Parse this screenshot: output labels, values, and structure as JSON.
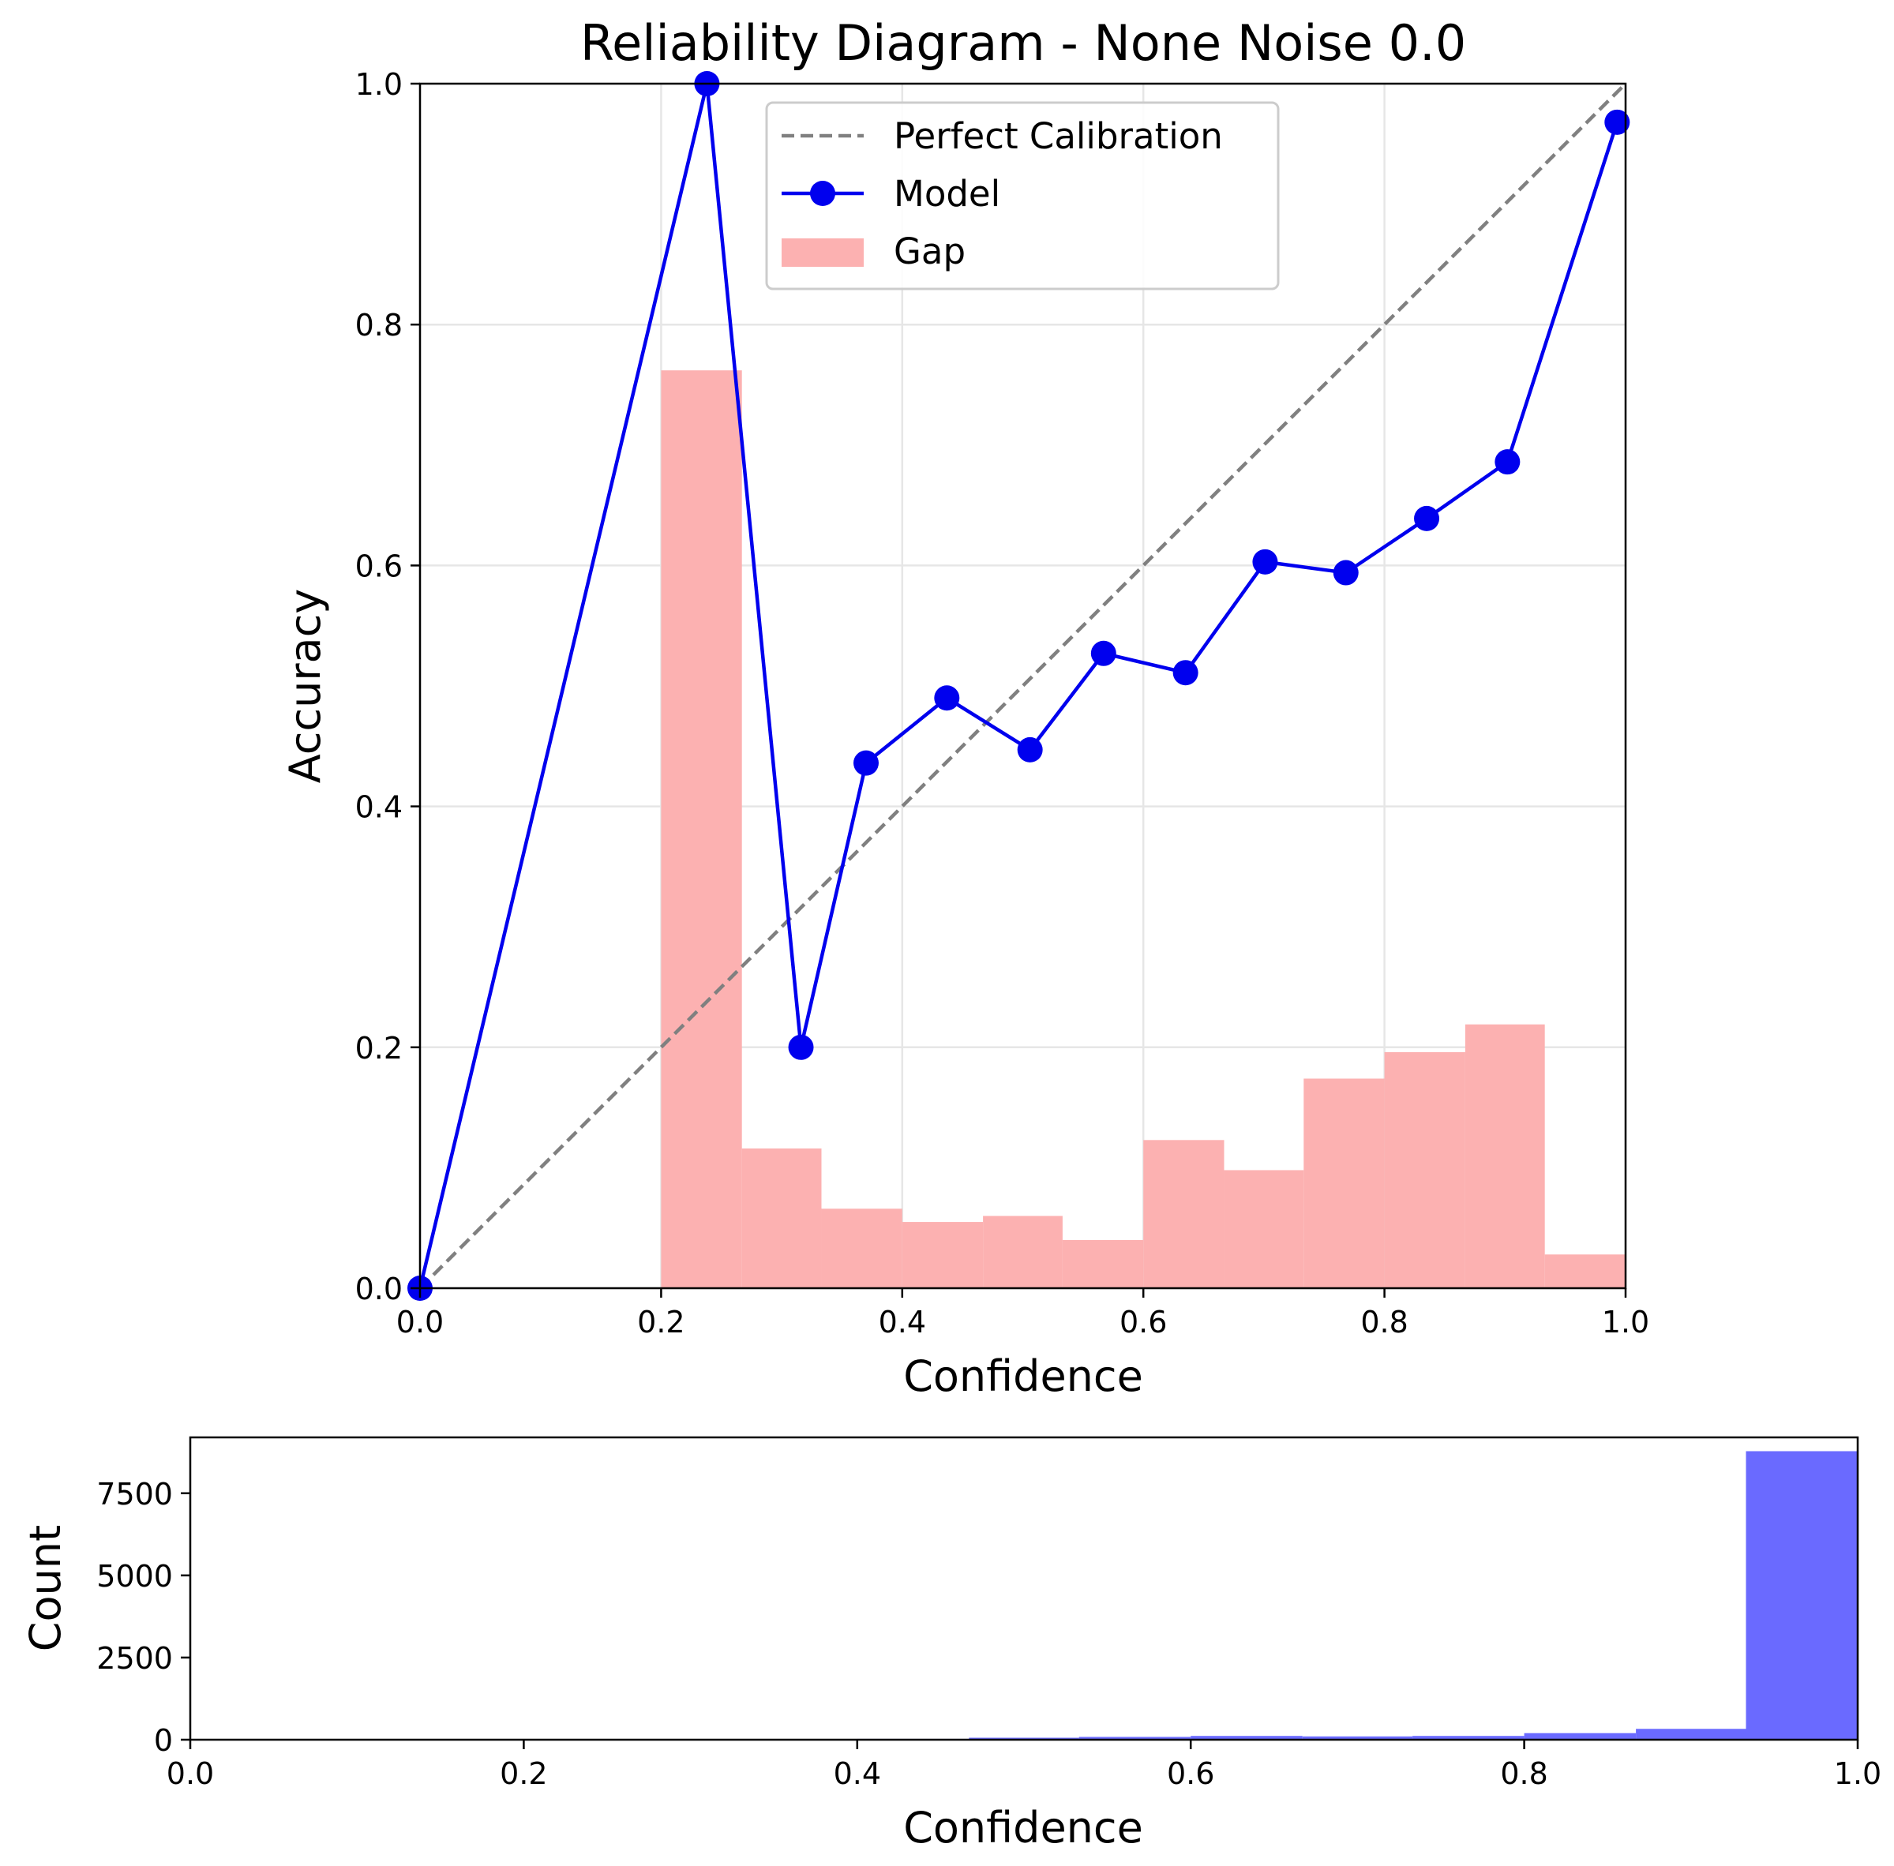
{
  "chart_data": [
    {
      "type": "line",
      "title": "Reliability Diagram - None Noise 0.0",
      "xlabel": "Confidence",
      "ylabel": "Accuracy",
      "xlim": [
        0,
        1
      ],
      "ylim": [
        0,
        1
      ],
      "xticks": [
        "0.0",
        "0.2",
        "0.4",
        "0.6",
        "0.8",
        "1.0"
      ],
      "yticks": [
        "0.0",
        "0.2",
        "0.4",
        "0.6",
        "0.8",
        "1.0"
      ],
      "grid": true,
      "legend_position": "top-center",
      "legend": [
        "Perfect Calibration",
        "Model",
        "Gap"
      ],
      "colors": {
        "model": "#0000ee",
        "gap": "#fcb1b1",
        "perfect": "#808080"
      },
      "perfect_calibration": {
        "x": [
          0,
          1
        ],
        "y": [
          0,
          1
        ]
      },
      "model": {
        "x": [
          0.0,
          0.238,
          0.316,
          0.37,
          0.437,
          0.506,
          0.567,
          0.635,
          0.701,
          0.768,
          0.835,
          0.902,
          0.993
        ],
        "y": [
          0.0,
          1.0,
          0.2,
          0.436,
          0.49,
          0.447,
          0.527,
          0.511,
          0.603,
          0.594,
          0.639,
          0.686,
          0.968
        ]
      },
      "gap": {
        "bin_edges": [
          0.2,
          0.267,
          0.333,
          0.4,
          0.467,
          0.533,
          0.6,
          0.667,
          0.733,
          0.8,
          0.867,
          0.933,
          1.0
        ],
        "values": [
          0.762,
          0.116,
          0.066,
          0.055,
          0.06,
          0.04,
          0.123,
          0.098,
          0.174,
          0.196,
          0.219,
          0.028
        ]
      }
    },
    {
      "type": "bar",
      "xlabel": "Confidence",
      "ylabel": "Count",
      "xlim": [
        0,
        1
      ],
      "ylim": [
        0,
        9200
      ],
      "xticks": [
        "0.0",
        "0.2",
        "0.4",
        "0.6",
        "0.8",
        "1.0"
      ],
      "yticks": [
        "0",
        "2500",
        "5000",
        "7500"
      ],
      "color": "#6a6aff",
      "bin_edges": [
        0.4,
        0.467,
        0.533,
        0.6,
        0.667,
        0.733,
        0.8,
        0.867,
        0.933,
        1.0
      ],
      "values": [
        25,
        60,
        85,
        115,
        100,
        115,
        200,
        330,
        8780
      ]
    }
  ]
}
